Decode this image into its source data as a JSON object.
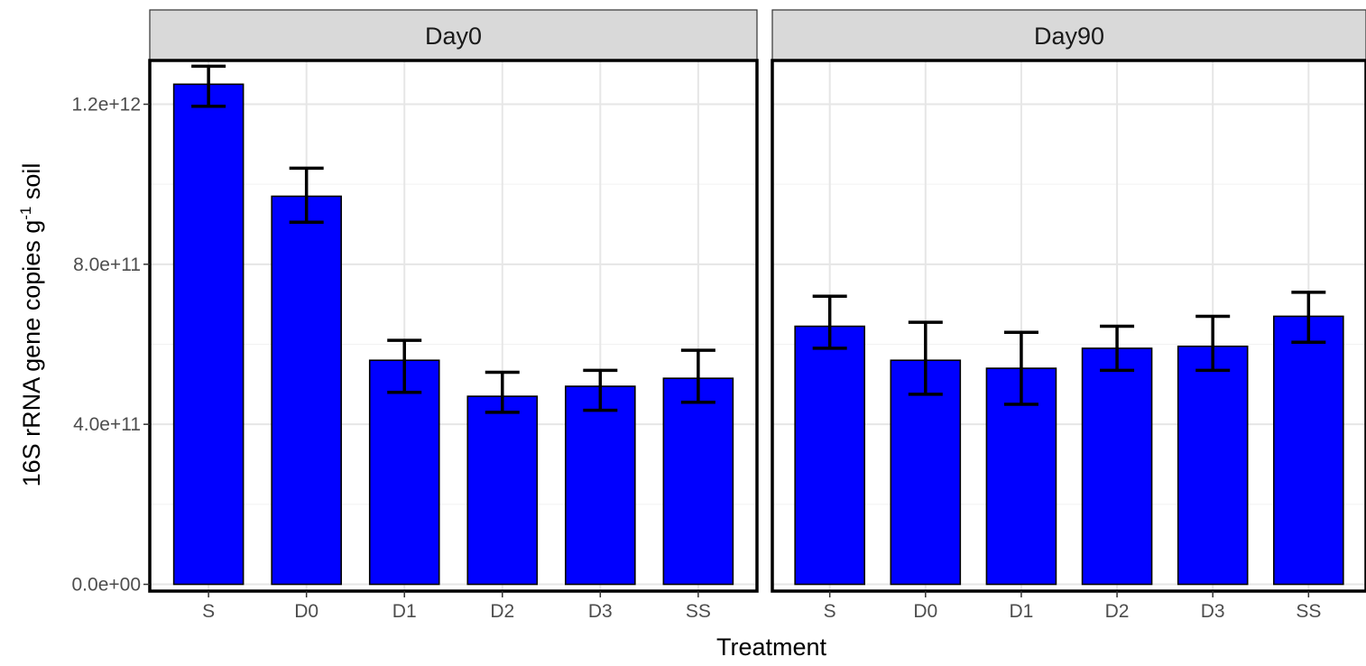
{
  "chart_data": {
    "type": "bar",
    "ylabel_main": "16S rRNA gene copies g",
    "ylabel_sup": "-1",
    "ylabel_tail": " soil",
    "xlabel": "Treatment",
    "ylim": [
      0,
      1320000000000.0
    ],
    "y_ticks": [
      0,
      400000000000.0,
      800000000000.0,
      1200000000000.0
    ],
    "y_tick_labels": [
      "0.0e+00",
      "4.0e+11",
      "8.0e+11",
      "1.2e+12"
    ],
    "categories": [
      "S",
      "D0",
      "D1",
      "D2",
      "D3",
      "SS"
    ],
    "bar_color": "#0000ff",
    "grid": true,
    "panels": [
      {
        "name": "Day0",
        "values": [
          1250000000000.0,
          970000000000.0,
          560000000000.0,
          470000000000.0,
          495000000000.0,
          515000000000.0
        ],
        "error_low": [
          1195000000000.0,
          905000000000.0,
          480000000000.0,
          430000000000.0,
          435000000000.0,
          455000000000.0
        ],
        "error_high": [
          1295000000000.0,
          1040000000000.0,
          610000000000.0,
          530000000000.0,
          535000000000.0,
          585000000000.0
        ]
      },
      {
        "name": "Day90",
        "values": [
          645000000000.0,
          560000000000.0,
          540000000000.0,
          590000000000.0,
          595000000000.0,
          670000000000.0
        ],
        "error_low": [
          590000000000.0,
          475000000000.0,
          450000000000.0,
          535000000000.0,
          535000000000.0,
          605000000000.0
        ],
        "error_high": [
          720000000000.0,
          655000000000.0,
          630000000000.0,
          645000000000.0,
          670000000000.0,
          730000000000.0
        ]
      }
    ]
  }
}
